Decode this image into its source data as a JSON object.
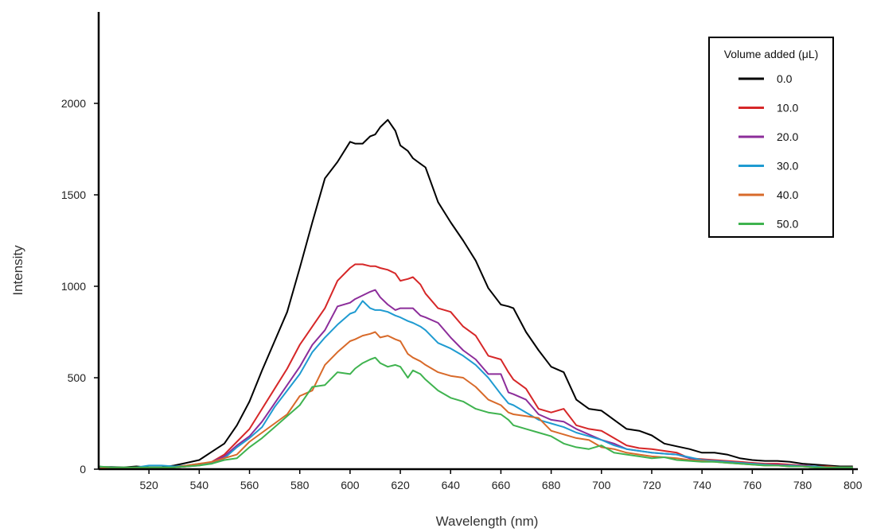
{
  "chart_data": {
    "type": "line",
    "xlabel": "Wavelength (nm)",
    "ylabel": "Intensity",
    "xlim": [
      500,
      802
    ],
    "ylim": [
      0,
      2500
    ],
    "x_ticks": [
      520,
      540,
      560,
      580,
      600,
      620,
      640,
      660,
      680,
      700,
      720,
      740,
      760,
      780,
      800
    ],
    "y_ticks": [
      0,
      500,
      1000,
      1500,
      2000
    ],
    "legend": {
      "title": "Volume added (μL)",
      "position": "top-right"
    },
    "x": [
      500,
      505,
      510,
      515,
      520,
      525,
      530,
      535,
      540,
      545,
      550,
      555,
      560,
      565,
      570,
      575,
      580,
      585,
      590,
      595,
      600,
      602,
      605,
      608,
      610,
      612,
      615,
      618,
      620,
      623,
      625,
      628,
      630,
      635,
      640,
      645,
      650,
      655,
      660,
      663,
      665,
      670,
      675,
      680,
      685,
      690,
      695,
      700,
      705,
      710,
      715,
      720,
      725,
      730,
      735,
      740,
      745,
      750,
      755,
      760,
      765,
      770,
      775,
      780,
      785,
      790,
      795,
      800
    ],
    "series": [
      {
        "name": "0.0",
        "color": "#000000",
        "values": [
          12,
          12,
          10,
          15,
          10,
          10,
          20,
          35,
          50,
          95,
          140,
          240,
          370,
          540,
          700,
          860,
          1100,
          1350,
          1590,
          1680,
          1790,
          1780,
          1780,
          1820,
          1830,
          1870,
          1910,
          1850,
          1770,
          1740,
          1700,
          1670,
          1650,
          1460,
          1350,
          1250,
          1140,
          990,
          900,
          890,
          880,
          750,
          650,
          560,
          530,
          380,
          330,
          320,
          270,
          220,
          210,
          185,
          140,
          125,
          110,
          90,
          90,
          80,
          60,
          50,
          45,
          45,
          40,
          30,
          25,
          20,
          15,
          15
        ]
      },
      {
        "name": "10.0",
        "color": "#d62728",
        "values": [
          8,
          8,
          8,
          10,
          8,
          8,
          10,
          15,
          25,
          40,
          80,
          150,
          220,
          330,
          440,
          550,
          680,
          780,
          880,
          1030,
          1100,
          1120,
          1120,
          1110,
          1110,
          1100,
          1090,
          1070,
          1030,
          1040,
          1050,
          1010,
          960,
          880,
          860,
          780,
          730,
          620,
          600,
          530,
          490,
          440,
          330,
          310,
          330,
          240,
          220,
          210,
          170,
          130,
          115,
          110,
          100,
          90,
          60,
          55,
          50,
          45,
          40,
          35,
          30,
          30,
          25,
          20,
          15,
          15,
          10,
          10
        ]
      },
      {
        "name": "20.0",
        "color": "#8c2d9a",
        "values": [
          6,
          6,
          6,
          8,
          8,
          8,
          10,
          15,
          20,
          40,
          70,
          130,
          180,
          260,
          360,
          460,
          560,
          680,
          760,
          890,
          910,
          930,
          950,
          970,
          980,
          940,
          900,
          870,
          880,
          880,
          880,
          840,
          830,
          800,
          720,
          650,
          600,
          520,
          520,
          420,
          410,
          380,
          300,
          270,
          260,
          220,
          190,
          160,
          140,
          110,
          100,
          90,
          85,
          80,
          60,
          50,
          45,
          40,
          35,
          30,
          25,
          25,
          20,
          20,
          15,
          10,
          10,
          10
        ]
      },
      {
        "name": "30.0",
        "color": "#1f9bd1",
        "values": [
          10,
          10,
          8,
          10,
          20,
          20,
          15,
          20,
          30,
          30,
          60,
          120,
          170,
          230,
          340,
          430,
          520,
          640,
          720,
          790,
          850,
          860,
          920,
          880,
          870,
          870,
          860,
          840,
          830,
          810,
          800,
          780,
          760,
          690,
          660,
          620,
          570,
          500,
          410,
          360,
          350,
          310,
          270,
          250,
          230,
          200,
          180,
          160,
          130,
          110,
          100,
          90,
          85,
          80,
          65,
          50,
          45,
          40,
          35,
          30,
          25,
          20,
          20,
          15,
          15,
          10,
          10,
          10
        ]
      },
      {
        "name": "40.0",
        "color": "#d86a2a",
        "values": [
          5,
          5,
          5,
          5,
          5,
          5,
          10,
          20,
          30,
          40,
          60,
          80,
          150,
          200,
          250,
          300,
          400,
          430,
          570,
          640,
          700,
          710,
          730,
          740,
          750,
          720,
          730,
          710,
          700,
          630,
          610,
          590,
          570,
          530,
          510,
          500,
          450,
          380,
          350,
          310,
          300,
          290,
          280,
          210,
          190,
          170,
          160,
          120,
          110,
          90,
          80,
          70,
          65,
          60,
          50,
          45,
          40,
          35,
          30,
          25,
          20,
          20,
          15,
          15,
          10,
          10,
          10,
          10
        ]
      },
      {
        "name": "50.0",
        "color": "#3fb34f",
        "values": [
          15,
          10,
          10,
          10,
          10,
          10,
          10,
          15,
          20,
          30,
          50,
          60,
          120,
          170,
          230,
          290,
          350,
          450,
          460,
          530,
          520,
          550,
          580,
          600,
          610,
          580,
          560,
          570,
          560,
          500,
          540,
          520,
          490,
          430,
          390,
          370,
          330,
          310,
          300,
          270,
          240,
          220,
          200,
          180,
          140,
          120,
          110,
          130,
          90,
          80,
          70,
          60,
          65,
          50,
          45,
          40,
          40,
          35,
          30,
          25,
          20,
          20,
          15,
          15,
          10,
          10,
          10,
          10
        ]
      }
    ]
  }
}
